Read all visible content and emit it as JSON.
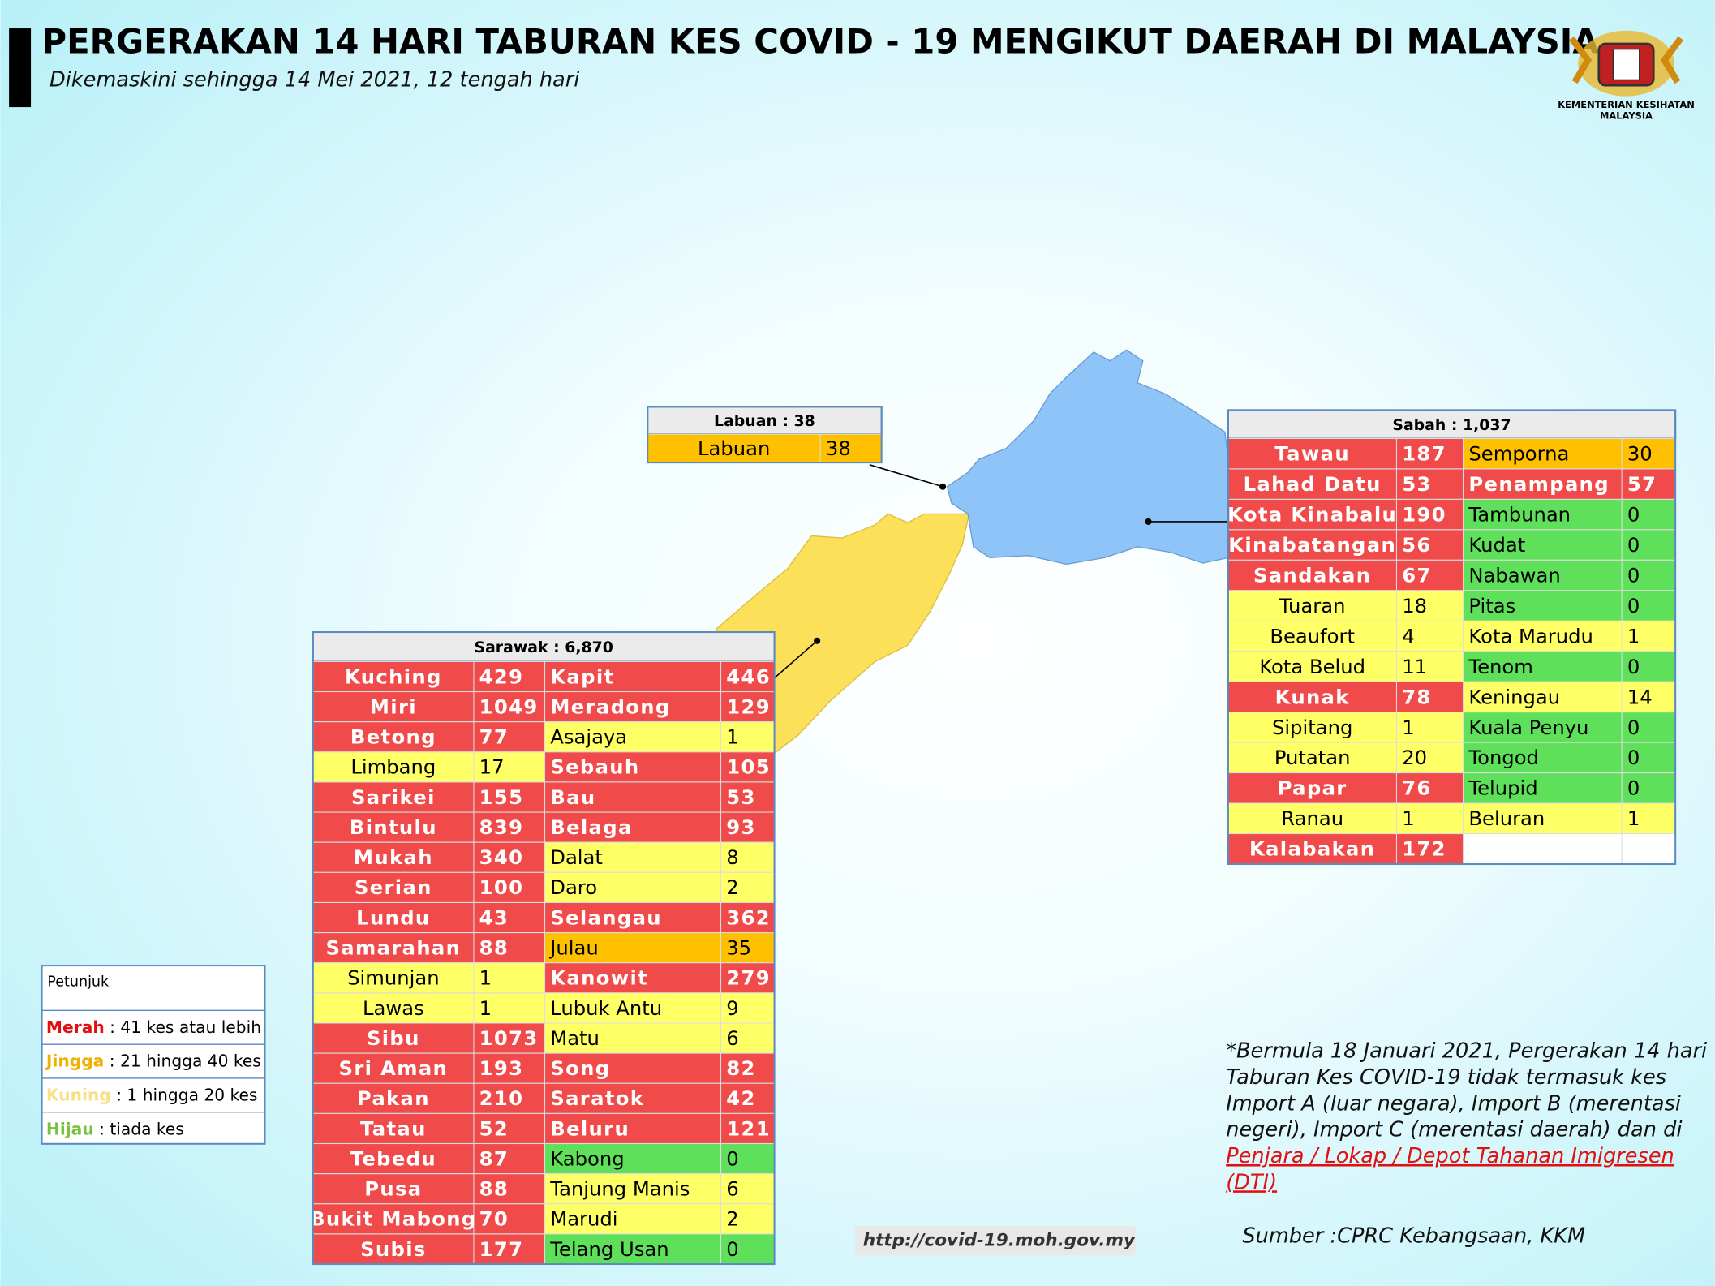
{
  "header": {
    "title": "PERGERAKAN 14 HARI TABURAN KES COVID - 19 MENGIKUT DAERAH DI MALAYSIA",
    "subtitle": "Dikemaskini sehingga 14 Mei 2021, 12 tengah hari",
    "logo_text": [
      "KEMENTERIAN KESIHATAN",
      "MALAYSIA"
    ]
  },
  "tables": {
    "labuan": {
      "title": "Labuan : 38",
      "rows": [
        [
          [
            "Labuan",
            38,
            "#ffc000"
          ]
        ]
      ]
    },
    "sabah": {
      "title": "Sabah : 1,037",
      "rows": [
        [
          [
            "Tawau",
            187,
            "#f04a4a"
          ],
          [
            "Semporna",
            30,
            "#ffc000"
          ]
        ],
        [
          [
            "Lahad Datu",
            53,
            "#f04a4a"
          ],
          [
            "Penampang",
            57,
            "#f04a4a"
          ]
        ],
        [
          [
            "Kota Kinabalu",
            190,
            "#f04a4a"
          ],
          [
            "Tambunan",
            0,
            "#5ee05a"
          ]
        ],
        [
          [
            "Kinabatangan",
            56,
            "#f04a4a"
          ],
          [
            "Kudat",
            0,
            "#5ee05a"
          ]
        ],
        [
          [
            "Sandakan",
            67,
            "#f04a4a"
          ],
          [
            "Nabawan",
            0,
            "#5ee05a"
          ]
        ],
        [
          [
            "Tuaran",
            18,
            "#ffff66"
          ],
          [
            "Pitas",
            0,
            "#5ee05a"
          ]
        ],
        [
          [
            "Beaufort",
            4,
            "#ffff66"
          ],
          [
            "Kota Marudu",
            1,
            "#ffff66"
          ]
        ],
        [
          [
            "Kota Belud",
            11,
            "#ffff66"
          ],
          [
            "Tenom",
            0,
            "#5ee05a"
          ]
        ],
        [
          [
            "Kunak",
            78,
            "#f04a4a"
          ],
          [
            "Keningau",
            14,
            "#ffff66"
          ]
        ],
        [
          [
            "Sipitang",
            1,
            "#ffff66"
          ],
          [
            "Kuala Penyu",
            0,
            "#5ee05a"
          ]
        ],
        [
          [
            "Putatan",
            20,
            "#ffff66"
          ],
          [
            "Tongod",
            0,
            "#5ee05a"
          ]
        ],
        [
          [
            "Papar",
            76,
            "#f04a4a"
          ],
          [
            "Telupid",
            0,
            "#5ee05a"
          ]
        ],
        [
          [
            "Ranau",
            1,
            "#ffff66"
          ],
          [
            "Beluran",
            1,
            "#ffff66"
          ]
        ],
        [
          [
            "Kalabakan",
            172,
            "#f04a4a"
          ]
        ]
      ]
    },
    "sarawak": {
      "title": "Sarawak : 6,870",
      "rows": [
        [
          [
            "Kuching",
            429,
            "#f04a4a"
          ],
          [
            "Kapit",
            446,
            "#f04a4a"
          ]
        ],
        [
          [
            "Miri",
            1049,
            "#f04a4a"
          ],
          [
            "Meradong",
            129,
            "#f04a4a"
          ]
        ],
        [
          [
            "Betong",
            77,
            "#f04a4a"
          ],
          [
            "Asajaya",
            1,
            "#ffff66"
          ]
        ],
        [
          [
            "Limbang",
            17,
            "#ffff66"
          ],
          [
            "Sebauh",
            105,
            "#f04a4a"
          ]
        ],
        [
          [
            "Sarikei",
            155,
            "#f04a4a"
          ],
          [
            "Bau",
            53,
            "#f04a4a"
          ]
        ],
        [
          [
            "Bintulu",
            839,
            "#f04a4a"
          ],
          [
            "Belaga",
            93,
            "#f04a4a"
          ]
        ],
        [
          [
            "Mukah",
            340,
            "#f04a4a"
          ],
          [
            "Dalat",
            8,
            "#ffff66"
          ]
        ],
        [
          [
            "Serian",
            100,
            "#f04a4a"
          ],
          [
            "Daro",
            2,
            "#ffff66"
          ]
        ],
        [
          [
            "Lundu",
            43,
            "#f04a4a"
          ],
          [
            "Selangau",
            362,
            "#f04a4a"
          ]
        ],
        [
          [
            "Samarahan",
            88,
            "#f04a4a"
          ],
          [
            "Julau",
            35,
            "#ffc000"
          ]
        ],
        [
          [
            "Simunjan",
            1,
            "#ffff66"
          ],
          [
            "Kanowit",
            279,
            "#f04a4a"
          ]
        ],
        [
          [
            "Lawas",
            1,
            "#ffff66"
          ],
          [
            "Lubuk Antu",
            9,
            "#ffff66"
          ]
        ],
        [
          [
            "Sibu",
            1073,
            "#f04a4a"
          ],
          [
            "Matu",
            6,
            "#ffff66"
          ]
        ],
        [
          [
            "Sri Aman",
            193,
            "#f04a4a"
          ],
          [
            "Song",
            82,
            "#f04a4a"
          ]
        ],
        [
          [
            "Pakan",
            210,
            "#f04a4a"
          ],
          [
            "Saratok",
            42,
            "#f04a4a"
          ]
        ],
        [
          [
            "Tatau",
            52,
            "#f04a4a"
          ],
          [
            "Beluru",
            121,
            "#f04a4a"
          ]
        ],
        [
          [
            "Tebedu",
            87,
            "#f04a4a"
          ],
          [
            "Kabong",
            0,
            "#5ee05a"
          ]
        ],
        [
          [
            "Pusa",
            88,
            "#f04a4a"
          ],
          [
            "Tanjung Manis",
            6,
            "#ffff66"
          ]
        ],
        [
          [
            "Bukit Mabong",
            70,
            "#f04a4a"
          ],
          [
            "Marudi",
            2,
            "#ffff66"
          ]
        ],
        [
          [
            "Subis",
            177,
            "#f04a4a"
          ],
          [
            "Telang Usan",
            0,
            "#5ee05a"
          ]
        ]
      ]
    }
  },
  "legend": {
    "title": "Petunjuk",
    "items": [
      {
        "label": "Merah",
        "text": " : 41 kes atau lebih",
        "color": "#e01010"
      },
      {
        "label": "Jingga",
        "text": " : 21 hingga 40 kes",
        "color": "#f0b000"
      },
      {
        "label": "Kuning",
        "text": " : 1 hingga 20 kes",
        "color": "#f8e08a"
      },
      {
        "label": "Hijau",
        "text": " : tiada kes",
        "color": "#78c040"
      }
    ]
  },
  "footnote": {
    "lines": [
      "*Bermula 18 Januari 2021, Pergerakan 14 hari",
      "Taburan Kes COVID-19 tidak termasuk kes",
      "Import A (luar negara), Import B (merentasi",
      "negeri), Import C (merentasi daerah) dan di"
    ],
    "highlight": [
      "Penjara / Lokap / Depot Tahanan Imigresen",
      "(DTI)"
    ]
  },
  "url": "http://covid-19.moh.gov.my",
  "source": "Sumber :CPRC Kebangsaan,  KKM"
}
